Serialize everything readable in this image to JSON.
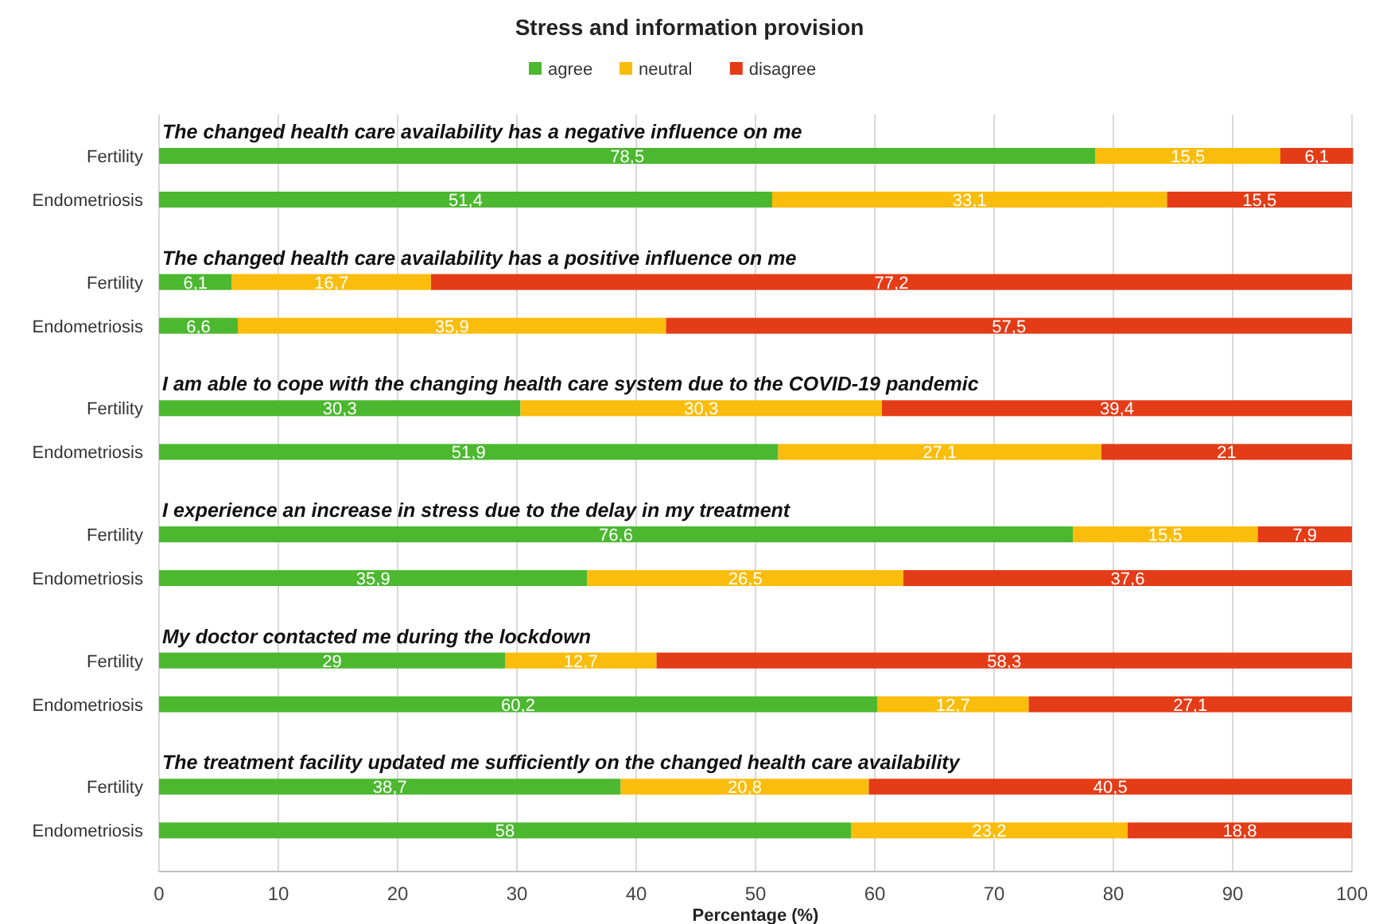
{
  "chart_data": {
    "type": "bar",
    "orientation": "horizontal",
    "stacked": true,
    "title": "Stress and information provision",
    "xlabel": "Percentage (%)",
    "categories": [
      "Fertility",
      "Endometriosis",
      "Fertility",
      "Endometriosis",
      "Fertility",
      "Endometriosis",
      "Fertility",
      "Endometriosis",
      "Fertility",
      "Endometriosis",
      "Fertility",
      "Endometriosis"
    ],
    "series": [
      {
        "name": "agree",
        "color": "#4cb830",
        "values": [
          78.5,
          51.4,
          6.1,
          6.6,
          30.3,
          51.9,
          76.6,
          35.9,
          29,
          60.2,
          38.7,
          58
        ],
        "value_labels": [
          "78,5",
          "51,4",
          "6,1",
          "6,6",
          "30,3",
          "51,9",
          "76,6",
          "35,9",
          "29",
          "60,2",
          "38,7",
          "58"
        ]
      },
      {
        "name": "neutral",
        "color": "#fbbd0b",
        "values": [
          15.5,
          33.1,
          16.7,
          35.9,
          30.3,
          27.1,
          15.5,
          26.5,
          12.7,
          12.7,
          20.8,
          23.2
        ],
        "value_labels": [
          "15,5",
          "33,1",
          "16,7",
          "35,9",
          "30,3",
          "27,1",
          "15,5",
          "26,5",
          "12,7",
          "12,7",
          "20,8",
          "23,2"
        ]
      },
      {
        "name": "disagree",
        "color": "#e43c17",
        "values": [
          6.1,
          15.5,
          77.2,
          57.5,
          39.4,
          21,
          7.9,
          37.6,
          58.3,
          27.1,
          40.5,
          18.8
        ],
        "value_labels": [
          "6,1",
          "15,5",
          "77,2",
          "57,5",
          "39,4",
          "21",
          "7,9",
          "37,6",
          "58,3",
          "27,1",
          "40,5",
          "18,8"
        ]
      }
    ],
    "annotations": [
      "The changed health care availability has a negative influence on me",
      "The changed health care availability has a positive influence on me",
      "I am able to cope with the changing health care system due to the COVID-19 pandemic",
      "I experience an increase in stress due to the delay in my treatment",
      "My doctor contacted me during the lockdown",
      "The treatment facility updated me sufficiently on the changed health care availability"
    ],
    "xlim": [
      0,
      100
    ],
    "xticks": [
      0,
      10,
      20,
      30,
      40,
      50,
      60,
      70,
      80,
      90,
      100
    ],
    "grid": "x",
    "legend": "top"
  }
}
